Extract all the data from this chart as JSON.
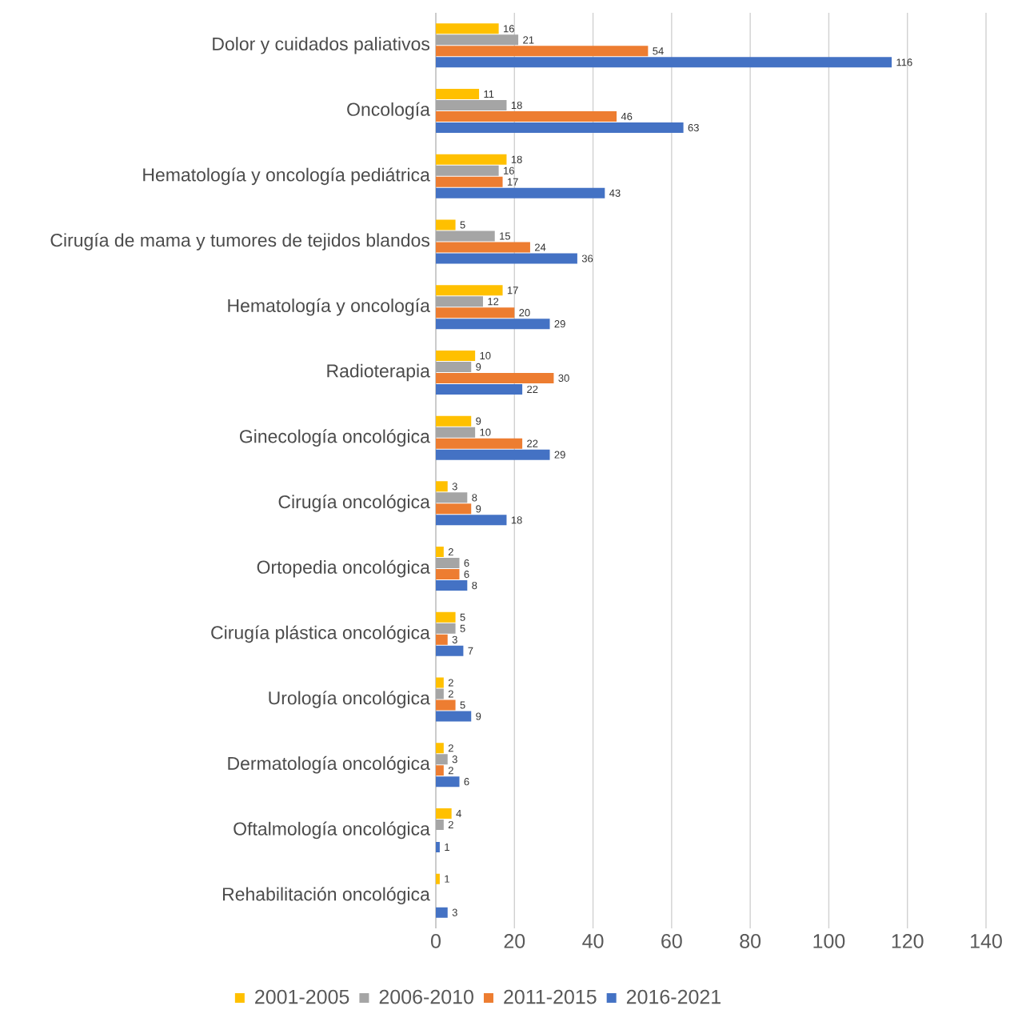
{
  "chart_data": {
    "type": "bar",
    "orientation": "horizontal",
    "categories": [
      "Dolor y cuidados paliativos",
      "Oncología",
      "Hematología y oncología pediátrica",
      "Cirugía de mama y tumores de tejidos blandos",
      "Hematología y oncología",
      "Radioterapia",
      "Ginecología oncológica",
      "Cirugía oncológica",
      "Ortopedia oncológica",
      "Cirugía plástica oncológica",
      "Urología oncológica",
      "Dermatología oncológica",
      "Oftalmología oncológica",
      "Rehabilitación oncológica"
    ],
    "series": [
      {
        "name": "2001-2005",
        "color": "#ffc000",
        "values": [
          16,
          11,
          18,
          5,
          17,
          10,
          9,
          3,
          2,
          5,
          2,
          2,
          4,
          1
        ]
      },
      {
        "name": "2006-2010",
        "color": "#a5a5a5",
        "values": [
          21,
          18,
          16,
          15,
          12,
          9,
          10,
          8,
          6,
          5,
          2,
          3,
          2,
          null
        ]
      },
      {
        "name": "2011-2015",
        "color": "#ed7d31",
        "values": [
          54,
          46,
          17,
          24,
          20,
          30,
          22,
          9,
          6,
          3,
          5,
          2,
          null,
          null
        ]
      },
      {
        "name": "2016-2021",
        "color": "#4472c4",
        "values": [
          116,
          63,
          43,
          36,
          29,
          22,
          29,
          18,
          8,
          7,
          9,
          6,
          1,
          3
        ]
      }
    ],
    "xlim": [
      0,
      140
    ],
    "xticks": [
      0,
      20,
      40,
      60,
      80,
      100,
      120,
      140
    ],
    "grid": "x",
    "legend": "bottom",
    "data_labels": true
  }
}
